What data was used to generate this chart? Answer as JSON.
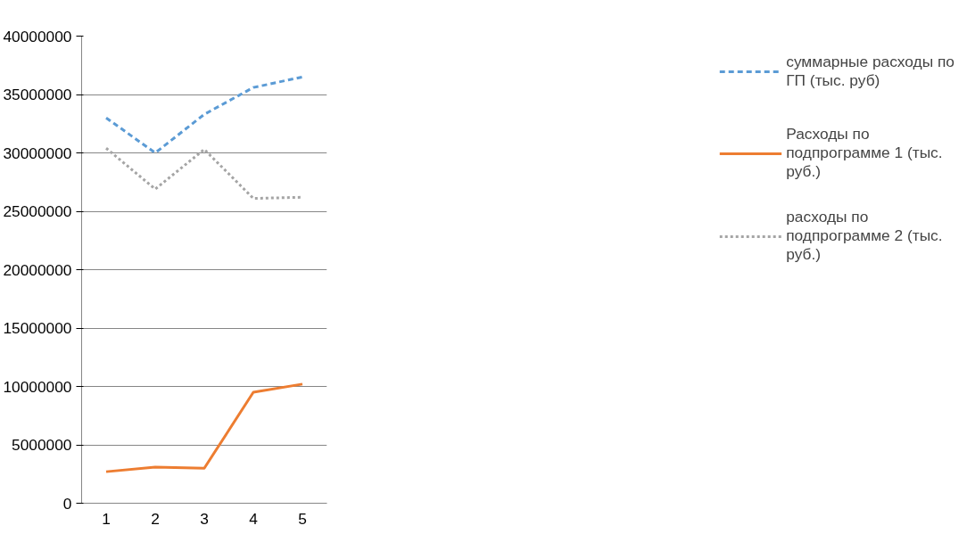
{
  "chart_data": {
    "type": "line",
    "categories": [
      "1",
      "2",
      "3",
      "4",
      "5"
    ],
    "series": [
      {
        "name": "суммарные расходы по ГП (тыс. руб)",
        "color": "#5b9bd5",
        "line_style": "dashed",
        "values": [
          33000000,
          30000000,
          33300000,
          35600000,
          36500000
        ]
      },
      {
        "name": "Расходы по подпрограмме 1 (тыс. руб.)",
        "color": "#ed7d31",
        "line_style": "solid",
        "values": [
          2700000,
          3100000,
          3000000,
          9500000,
          10200000
        ]
      },
      {
        "name": "расходы по подпрограмме 2 (тыс. руб.)",
        "color": "#a5a5a5",
        "line_style": "dotted",
        "values": [
          30400000,
          26900000,
          30300000,
          26100000,
          26200000
        ]
      }
    ],
    "ylim": [
      0,
      40000000
    ],
    "yticks": [
      0,
      5000000,
      10000000,
      15000000,
      20000000,
      25000000,
      30000000,
      35000000,
      40000000
    ],
    "grid": "y",
    "legend": "right",
    "marker": "none"
  }
}
